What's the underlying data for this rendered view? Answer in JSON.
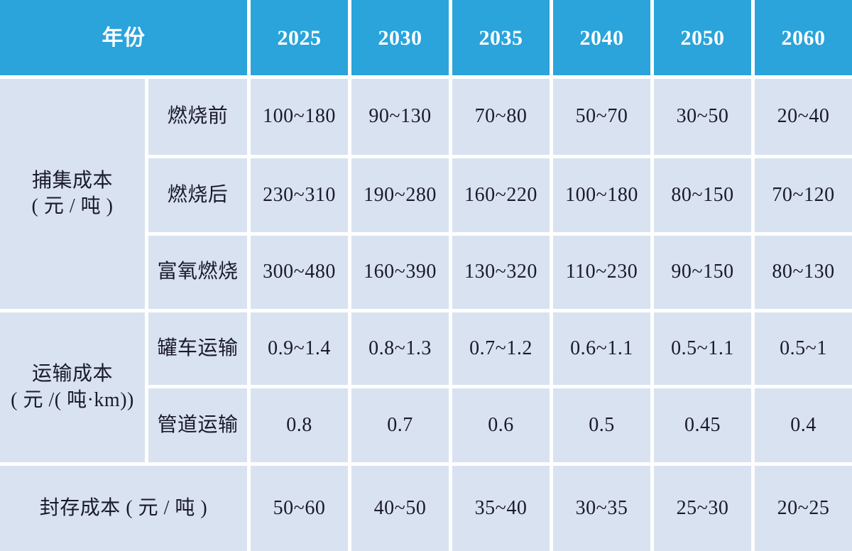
{
  "table": {
    "header": {
      "year_label": "年份",
      "years": [
        "2025",
        "2030",
        "2035",
        "2040",
        "2050",
        "2060"
      ]
    },
    "groups": [
      {
        "label_line1": "捕集成本",
        "label_line2": "( 元 / 吨 )",
        "rows": [
          {
            "label": "燃烧前",
            "values": [
              "100~180",
              "90~130",
              "70~80",
              "50~70",
              "30~50",
              "20~40"
            ]
          },
          {
            "label": "燃烧后",
            "values": [
              "230~310",
              "190~280",
              "160~220",
              "100~180",
              "80~150",
              "70~120"
            ]
          },
          {
            "label": "富氧燃烧",
            "values": [
              "300~480",
              "160~390",
              "130~320",
              "110~230",
              "90~150",
              "80~130"
            ]
          }
        ]
      },
      {
        "label_line1": "运输成本",
        "label_line2": "( 元 /( 吨·km))",
        "rows": [
          {
            "label": "罐车运输",
            "values": [
              "0.9~1.4",
              "0.8~1.3",
              "0.7~1.2",
              "0.6~1.1",
              "0.5~1.1",
              "0.5~1"
            ]
          },
          {
            "label": "管道运输",
            "values": [
              "0.8",
              "0.7",
              "0.6",
              "0.5",
              "0.45",
              "0.4"
            ]
          }
        ]
      }
    ],
    "storage_row": {
      "label": "封存成本 ( 元 / 吨 )",
      "values": [
        "50~60",
        "40~50",
        "35~40",
        "30~35",
        "25~30",
        "20~25"
      ]
    }
  },
  "colors": {
    "header_bg": "#2aa4db",
    "header_text": "#ffffff",
    "cell_bg": "#d9e2f1",
    "cell_text": "#1a1a2b",
    "grid_gap": "#ffffff"
  },
  "chart_data": {
    "type": "table",
    "title": "CCUS成本预测表",
    "columns": [
      "年份",
      "2025",
      "2030",
      "2035",
      "2040",
      "2050",
      "2060"
    ],
    "rows": [
      {
        "group": "捕集成本 ( 元 / 吨 )",
        "item": "燃烧前",
        "values": [
          "100~180",
          "90~130",
          "70~80",
          "50~70",
          "30~50",
          "20~40"
        ]
      },
      {
        "group": "捕集成本 ( 元 / 吨 )",
        "item": "燃烧后",
        "values": [
          "230~310",
          "190~280",
          "160~220",
          "100~180",
          "80~150",
          "70~120"
        ]
      },
      {
        "group": "捕集成本 ( 元 / 吨 )",
        "item": "富氧燃烧",
        "values": [
          "300~480",
          "160~390",
          "130~320",
          "110~230",
          "90~150",
          "80~130"
        ]
      },
      {
        "group": "运输成本 ( 元 /( 吨·km))",
        "item": "罐车运输",
        "values": [
          "0.9~1.4",
          "0.8~1.3",
          "0.7~1.2",
          "0.6~1.1",
          "0.5~1.1",
          "0.5~1"
        ]
      },
      {
        "group": "运输成本 ( 元 /( 吨·km))",
        "item": "管道运输",
        "values": [
          "0.8",
          "0.7",
          "0.6",
          "0.5",
          "0.45",
          "0.4"
        ]
      },
      {
        "group": "封存成本 ( 元 / 吨 )",
        "item": "",
        "values": [
          "50~60",
          "40~50",
          "35~40",
          "30~35",
          "25~30",
          "20~25"
        ]
      }
    ]
  }
}
